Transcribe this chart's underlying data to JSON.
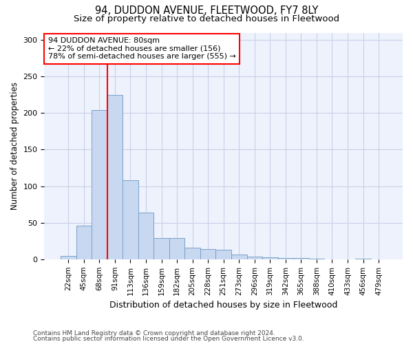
{
  "title1": "94, DUDDON AVENUE, FLEETWOOD, FY7 8LY",
  "title2": "Size of property relative to detached houses in Fleetwood",
  "xlabel": "Distribution of detached houses by size in Fleetwood",
  "ylabel": "Number of detached properties",
  "bar_labels": [
    "22sqm",
    "45sqm",
    "68sqm",
    "91sqm",
    "113sqm",
    "136sqm",
    "159sqm",
    "182sqm",
    "205sqm",
    "228sqm",
    "251sqm",
    "273sqm",
    "296sqm",
    "319sqm",
    "342sqm",
    "365sqm",
    "388sqm",
    "410sqm",
    "433sqm",
    "456sqm",
    "479sqm"
  ],
  "bar_values": [
    5,
    46,
    204,
    225,
    108,
    64,
    29,
    29,
    16,
    14,
    13,
    6,
    4,
    3,
    2,
    2,
    1,
    0,
    0,
    1,
    0
  ],
  "bar_color": "#c8d8f0",
  "bar_edge_color": "#7aA0c8",
  "vline_x": 2.5,
  "vline_color": "red",
  "annotation_text": "94 DUDDON AVENUE: 80sqm\n← 22% of detached houses are smaller (156)\n78% of semi-detached houses are larger (555) →",
  "annotation_box_color": "white",
  "annotation_box_edgecolor": "red",
  "footnote1": "Contains HM Land Registry data © Crown copyright and database right 2024.",
  "footnote2": "Contains public sector information licensed under the Open Government Licence v3.0.",
  "ylim": [
    0,
    310
  ],
  "yticks": [
    0,
    50,
    100,
    150,
    200,
    250,
    300
  ],
  "grid_color": "#c8d0e8",
  "bg_color": "#eef2fc",
  "title1_fontsize": 10.5,
  "title2_fontsize": 9.5,
  "xlabel_fontsize": 9,
  "ylabel_fontsize": 8.5,
  "annot_fontsize": 8,
  "tick_fontsize": 7.5,
  "footnote_fontsize": 6.5
}
